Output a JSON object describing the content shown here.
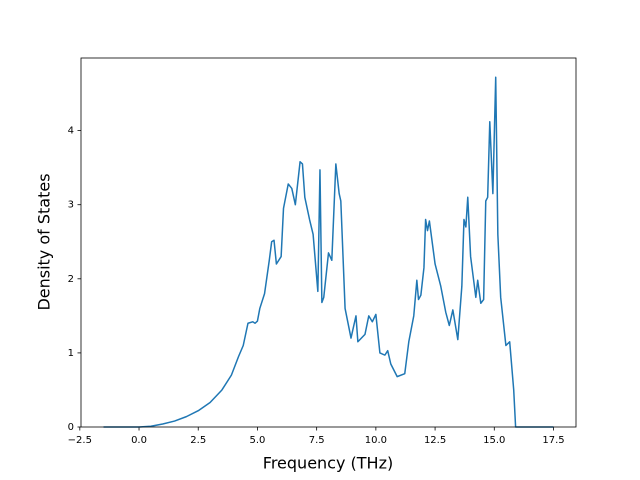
{
  "chart_data": {
    "type": "line",
    "x_label": "Frequency (THz)",
    "y_label": "Density of States",
    "x": [
      -1.5,
      0,
      0.5,
      1.0,
      1.5,
      2.0,
      2.5,
      3.0,
      3.5,
      3.9,
      4.2,
      4.4,
      4.6,
      4.8,
      4.9,
      5.0,
      5.1,
      5.3,
      5.5,
      5.6,
      5.7,
      5.8,
      6.0,
      6.1,
      6.3,
      6.45,
      6.6,
      6.8,
      6.9,
      7.0,
      7.2,
      7.35,
      7.55,
      7.64,
      7.72,
      7.8,
      8.0,
      8.14,
      8.31,
      8.45,
      8.52,
      8.7,
      8.95,
      9.16,
      9.24,
      9.54,
      9.7,
      9.85,
      10.0,
      10.17,
      10.38,
      10.5,
      10.63,
      10.9,
      11.22,
      11.39,
      11.6,
      11.73,
      11.8,
      11.9,
      12.03,
      12.1,
      12.18,
      12.26,
      12.5,
      12.74,
      12.95,
      13.1,
      13.25,
      13.46,
      13.63,
      13.72,
      13.8,
      13.88,
      14.0,
      14.22,
      14.3,
      14.43,
      14.55,
      14.64,
      14.72,
      14.81,
      14.94,
      15.06,
      15.15,
      15.27,
      15.49,
      15.65,
      15.82,
      15.9,
      16.5,
      17.5
    ],
    "series": [
      {
        "name": "Density of States",
        "color": "#1f77b4",
        "values": [
          0,
          0,
          0.01,
          0.04,
          0.08,
          0.14,
          0.22,
          0.33,
          0.5,
          0.7,
          0.95,
          1.1,
          1.4,
          1.42,
          1.4,
          1.43,
          1.6,
          1.8,
          2.25,
          2.5,
          2.52,
          2.2,
          2.3,
          2.95,
          3.28,
          3.22,
          3.0,
          3.58,
          3.55,
          3.1,
          2.8,
          2.6,
          1.83,
          3.47,
          1.68,
          1.75,
          2.35,
          2.25,
          3.55,
          3.15,
          3.05,
          1.6,
          1.2,
          1.5,
          1.15,
          1.25,
          1.5,
          1.42,
          1.52,
          1.0,
          0.97,
          1.03,
          0.85,
          0.68,
          0.72,
          1.15,
          1.5,
          1.98,
          1.72,
          1.78,
          2.15,
          2.8,
          2.65,
          2.78,
          2.2,
          1.9,
          1.55,
          1.37,
          1.58,
          1.18,
          1.9,
          2.8,
          2.7,
          3.1,
          2.3,
          1.75,
          1.98,
          1.67,
          1.72,
          3.05,
          3.1,
          4.12,
          3.15,
          4.72,
          2.6,
          1.75,
          1.1,
          1.15,
          0.5,
          0,
          0,
          0
        ]
      }
    ],
    "xlim": [
      -2.45,
      18.45
    ],
    "ylim": [
      0,
      4.98
    ],
    "xticks": [
      {
        "value": -2.5,
        "label": "−2.5"
      },
      {
        "value": 0,
        "label": "0.0"
      },
      2.5,
      {
        "value": 5,
        "label": "5.0"
      },
      7.5,
      {
        "value": 10,
        "label": "10.0"
      },
      12.5,
      {
        "value": 15,
        "label": "15.0"
      },
      17.5
    ],
    "yticks": [
      0,
      1,
      2,
      3,
      4
    ],
    "grid": false
  }
}
